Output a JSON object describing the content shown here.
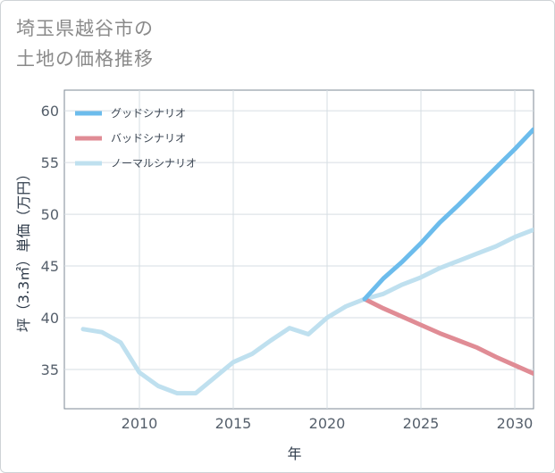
{
  "title": {
    "line1": "埼玉県越谷市の",
    "line2": "土地の価格推移"
  },
  "chart_data": {
    "type": "line",
    "xlabel": "年",
    "ylabel": "坪（3.3㎡）単価（万円）",
    "xlim": [
      2006,
      2031
    ],
    "ylim": [
      31.2,
      62
    ],
    "xticks": [
      2010,
      2015,
      2020,
      2025,
      2030
    ],
    "yticks": [
      35,
      40,
      45,
      50,
      55,
      60
    ],
    "grid": true,
    "legend_position": "top-left",
    "series": [
      {
        "name": "グッドシナリオ",
        "color": "#6cbcec",
        "x": [
          2022,
          2023,
          2024,
          2025,
          2026,
          2027,
          2028,
          2029,
          2030,
          2031
        ],
        "values": [
          41.8,
          43.8,
          45.4,
          47.2,
          49.2,
          50.9,
          52.7,
          54.5,
          56.3,
          58.2
        ]
      },
      {
        "name": "バッドシナリオ",
        "color": "#e08c95",
        "x": [
          2022,
          2023,
          2024,
          2025,
          2026,
          2027,
          2028,
          2029,
          2030,
          2031
        ],
        "values": [
          41.8,
          40.9,
          40.1,
          39.3,
          38.5,
          37.8,
          37.1,
          36.2,
          35.4,
          34.6
        ]
      },
      {
        "name": "ノーマルシナリオ",
        "color": "#bfe0ef",
        "x": [
          2007,
          2008,
          2009,
          2010,
          2011,
          2012,
          2013,
          2014,
          2015,
          2016,
          2017,
          2018,
          2019,
          2020,
          2021,
          2022,
          2023,
          2024,
          2025,
          2026,
          2027,
          2028,
          2029,
          2030,
          2031
        ],
        "values": [
          38.9,
          38.6,
          37.6,
          34.7,
          33.4,
          32.7,
          32.7,
          34.2,
          35.7,
          36.5,
          37.8,
          39.0,
          38.4,
          40.0,
          41.1,
          41.8,
          42.3,
          43.2,
          43.9,
          44.8,
          45.5,
          46.2,
          46.9,
          47.8,
          48.5
        ]
      }
    ]
  }
}
